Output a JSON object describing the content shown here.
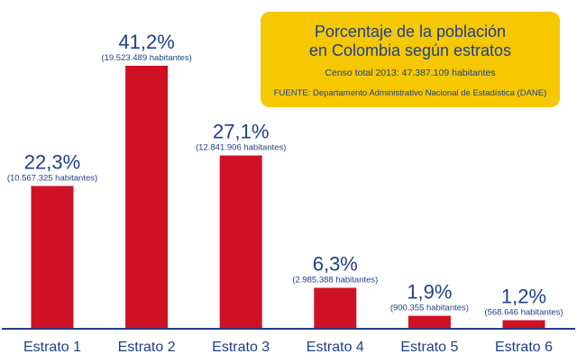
{
  "chart_data": {
    "type": "bar",
    "title": "Porcentaje de la población\nen Colombia según estratos",
    "subtitle": "Censo total 2013: 47.387.109 habitantes",
    "source": "FUENTE: Departamento Administrativo Nacional de Estadística (DANE)",
    "categories": [
      "Estrato 1",
      "Estrato 2",
      "Estrato 3",
      "Estrato 4",
      "Estrato 5",
      "Estrato 6"
    ],
    "values": [
      22.3,
      41.2,
      27.1,
      6.3,
      1.9,
      1.2
    ],
    "value_labels": [
      "22,3%",
      "41,2%",
      "27,1%",
      "6,3%",
      "1,9%",
      "1,2%"
    ],
    "population_labels": [
      "(10.567.325 habitantes)",
      "(19.523.489 habitantes)",
      "(12.841.906 habitantes)",
      "(2.985.388 habitantes)",
      "(900.355 habitantes)",
      "(568.646 habitantes)"
    ],
    "ylim": [
      0,
      41.2
    ],
    "grid": false,
    "colors": {
      "bar": "#cf1126",
      "axis": "#1f3f8a",
      "text": "#1f3f8a",
      "box": "#f5c800"
    }
  }
}
